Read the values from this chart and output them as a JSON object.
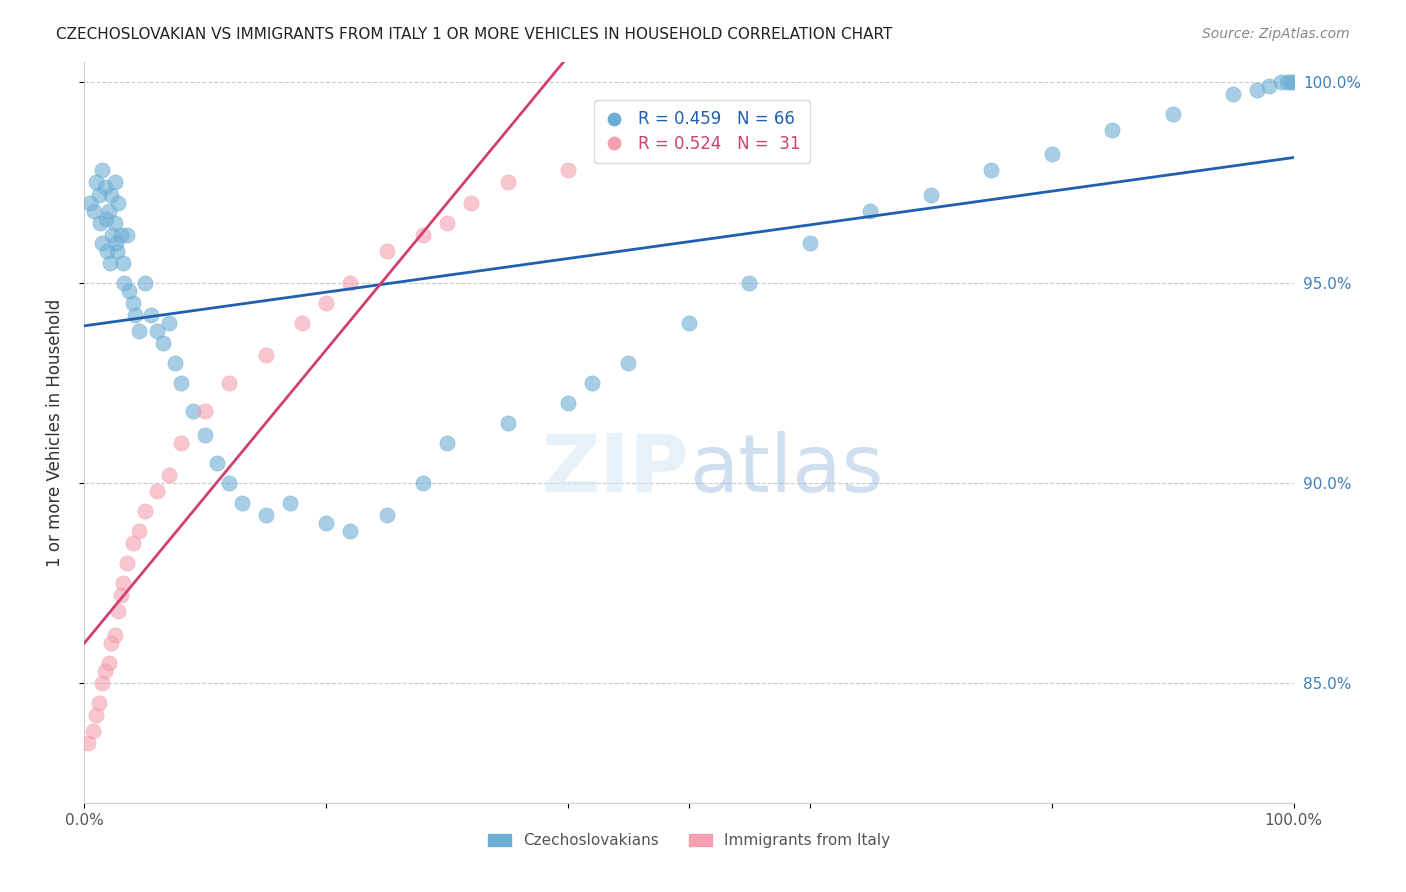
{
  "title": "CZECHOSLOVAKIAN VS IMMIGRANTS FROM ITALY 1 OR MORE VEHICLES IN HOUSEHOLD CORRELATION CHART",
  "source": "Source: ZipAtlas.com",
  "ylabel": "1 or more Vehicles in Household",
  "watermark_zip": "ZIP",
  "watermark_atlas": "atlas",
  "blue_R": 0.459,
  "blue_N": 66,
  "pink_R": 0.524,
  "pink_N": 31,
  "xlim": [
    0.0,
    1.0
  ],
  "ylim": [
    0.82,
    1.005
  ],
  "blue_color": "#6daed4",
  "pink_color": "#f4a0b0",
  "blue_line_color": "#2060b0",
  "pink_line_color": "#d04070",
  "grid_color": "#cccccc",
  "blue_x": [
    0.005,
    0.008,
    0.01,
    0.012,
    0.013,
    0.015,
    0.015,
    0.017,
    0.018,
    0.019,
    0.02,
    0.021,
    0.022,
    0.023,
    0.025,
    0.025,
    0.026,
    0.027,
    0.028,
    0.03,
    0.032,
    0.033,
    0.035,
    0.037,
    0.04,
    0.042,
    0.045,
    0.05,
    0.055,
    0.06,
    0.065,
    0.07,
    0.075,
    0.08,
    0.09,
    0.1,
    0.11,
    0.12,
    0.13,
    0.15,
    0.17,
    0.2,
    0.22,
    0.25,
    0.28,
    0.3,
    0.35,
    0.4,
    0.42,
    0.45,
    0.5,
    0.55,
    0.6,
    0.65,
    0.7,
    0.75,
    0.8,
    0.85,
    0.9,
    0.95,
    0.97,
    0.98,
    0.99,
    0.995,
    0.998,
    1.0
  ],
  "blue_y": [
    0.97,
    0.968,
    0.975,
    0.972,
    0.965,
    0.978,
    0.96,
    0.974,
    0.966,
    0.958,
    0.968,
    0.955,
    0.972,
    0.962,
    0.975,
    0.965,
    0.96,
    0.958,
    0.97,
    0.962,
    0.955,
    0.95,
    0.962,
    0.948,
    0.945,
    0.942,
    0.938,
    0.95,
    0.942,
    0.938,
    0.935,
    0.94,
    0.93,
    0.925,
    0.918,
    0.912,
    0.905,
    0.9,
    0.895,
    0.892,
    0.895,
    0.89,
    0.888,
    0.892,
    0.9,
    0.91,
    0.915,
    0.92,
    0.925,
    0.93,
    0.94,
    0.95,
    0.96,
    0.968,
    0.972,
    0.978,
    0.982,
    0.988,
    0.992,
    0.997,
    0.998,
    0.999,
    1.0,
    1.0,
    1.0,
    1.0
  ],
  "pink_x": [
    0.003,
    0.007,
    0.01,
    0.012,
    0.015,
    0.017,
    0.02,
    0.022,
    0.025,
    0.028,
    0.03,
    0.032,
    0.035,
    0.04,
    0.045,
    0.05,
    0.06,
    0.07,
    0.08,
    0.1,
    0.12,
    0.15,
    0.18,
    0.2,
    0.22,
    0.25,
    0.28,
    0.3,
    0.32,
    0.35,
    0.4
  ],
  "pink_y": [
    0.835,
    0.838,
    0.842,
    0.845,
    0.85,
    0.853,
    0.855,
    0.86,
    0.862,
    0.868,
    0.872,
    0.875,
    0.88,
    0.885,
    0.888,
    0.893,
    0.898,
    0.902,
    0.91,
    0.918,
    0.925,
    0.932,
    0.94,
    0.945,
    0.95,
    0.958,
    0.962,
    0.965,
    0.97,
    0.975,
    0.978
  ],
  "yticks": [
    0.85,
    0.9,
    0.95,
    1.0
  ],
  "ytick_labels": [
    "85.0%",
    "90.0%",
    "95.0%",
    "100.0%"
  ],
  "xtick_labels": [
    "0.0%",
    "",
    "",
    "",
    "",
    "",
    "100.0%"
  ],
  "legend_label_blue": "Czechoslovakians",
  "legend_label_pink": "Immigrants from Italy"
}
